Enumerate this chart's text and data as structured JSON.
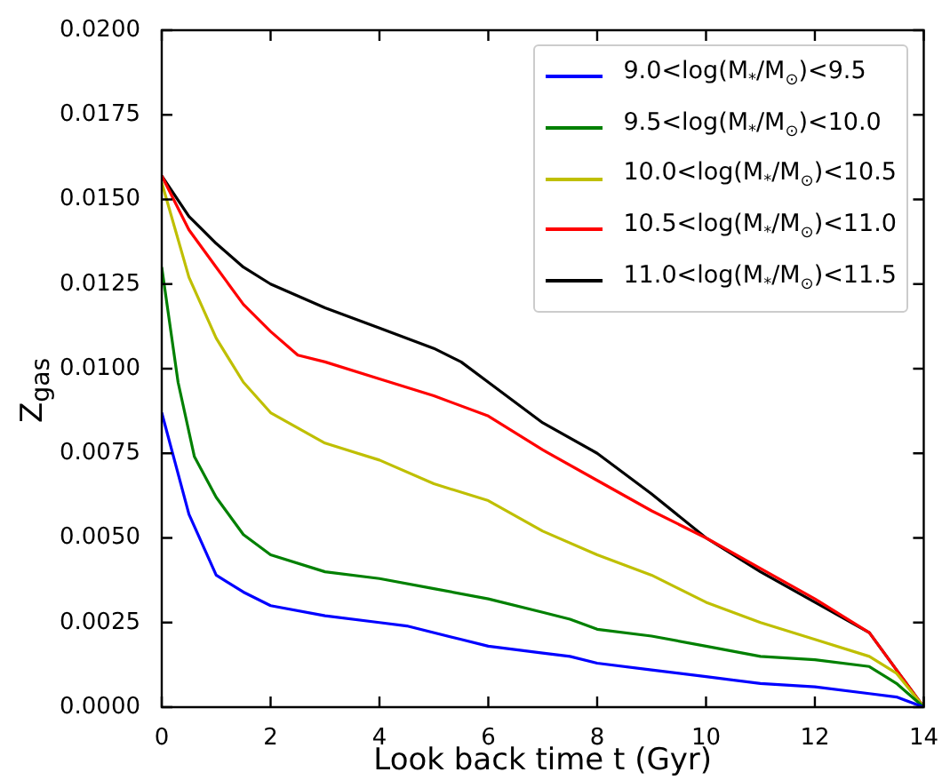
{
  "chart_data": {
    "type": "line",
    "xlabel": "Look back time t (Gyr)",
    "ylabel": "Z$_{gas}$",
    "xlim": [
      0,
      14
    ],
    "xticks": [
      0,
      2,
      4,
      6,
      8,
      10,
      12,
      14
    ],
    "ylim": [
      0,
      0.02
    ],
    "yticks": [
      {
        "value": 0,
        "label": "0.0000"
      },
      {
        "value": 0.0025,
        "label": "0.0025"
      },
      {
        "value": 0.005,
        "label": "0.0050"
      },
      {
        "value": 0.0075,
        "label": "0.0075"
      },
      {
        "value": 0.01,
        "label": "0.0100"
      },
      {
        "value": 0.0125,
        "label": "0.0125"
      },
      {
        "value": 0.015,
        "label": "0.0150"
      },
      {
        "value": 0.0175,
        "label": "0.0175"
      },
      {
        "value": 0.02,
        "label": "0.0200"
      }
    ],
    "grid": false,
    "legend": "top right",
    "marker": "none",
    "line_style": "solid",
    "series": [
      {
        "name": "9.0<log(M$_{*}$/M$_{⊙}$)<9.5",
        "color": "#0000ff",
        "x": [
          0,
          0.5,
          1,
          1.5,
          2,
          3,
          4,
          4.5,
          5.5,
          6,
          7,
          7.5,
          8,
          9,
          10,
          11,
          12,
          13,
          13.5,
          14
        ],
        "values": [
          0.0087,
          0.0057,
          0.0039,
          0.0034,
          0.003,
          0.0027,
          0.0025,
          0.0024,
          0.002,
          0.0018,
          0.0016,
          0.0015,
          0.0013,
          0.0011,
          0.0009,
          0.0007,
          0.0006,
          0.0004,
          0.0003,
          0
        ]
      },
      {
        "name": "9.5<log(M$_{*}$/M$_{⊙}$)<10.0",
        "color": "#008000",
        "x": [
          0,
          0.3,
          0.6,
          1,
          1.5,
          2,
          3,
          4,
          5,
          6,
          7,
          7.5,
          8,
          9,
          10,
          11,
          12,
          13,
          13.5,
          14
        ],
        "values": [
          0.013,
          0.0096,
          0.0074,
          0.0062,
          0.0051,
          0.0045,
          0.004,
          0.0038,
          0.0035,
          0.0032,
          0.0028,
          0.0026,
          0.0023,
          0.0021,
          0.0018,
          0.0015,
          0.0014,
          0.0012,
          0.0007,
          0
        ]
      },
      {
        "name": "10.0<log(M$_{*}$/M$_{⊙}$)<10.5",
        "color": "#bfbf00",
        "x": [
          0,
          0.5,
          1,
          1.5,
          2,
          3,
          4,
          5,
          6,
          7,
          8,
          9,
          10,
          11,
          12,
          13,
          13.5,
          14
        ],
        "values": [
          0.0155,
          0.0127,
          0.0109,
          0.0096,
          0.0087,
          0.0078,
          0.0073,
          0.0066,
          0.0061,
          0.0052,
          0.0045,
          0.0039,
          0.0031,
          0.0025,
          0.002,
          0.0015,
          0.001,
          0
        ]
      },
      {
        "name": "10.5<log(M$_{*}$/M$_{⊙}$)<11.0",
        "color": "#ff0000",
        "x": [
          0,
          0.5,
          1,
          1.5,
          2,
          2.5,
          3,
          4,
          5,
          6,
          7,
          8,
          9,
          10,
          11,
          12,
          13,
          13.5,
          14
        ],
        "values": [
          0.0157,
          0.0141,
          0.013,
          0.0119,
          0.0111,
          0.0104,
          0.0102,
          0.0097,
          0.0092,
          0.0086,
          0.0076,
          0.0067,
          0.0058,
          0.005,
          0.0041,
          0.0032,
          0.0022,
          0.0011,
          0
        ]
      },
      {
        "name": "11.0<log(M$_{*}$/M$_{⊙}$)<11.5",
        "color": "#000000",
        "x": [
          0,
          0.5,
          1,
          1.5,
          2,
          3,
          4,
          5,
          5.5,
          6,
          7,
          8,
          9,
          10,
          11,
          12,
          13,
          13.5,
          14
        ],
        "values": [
          0.0157,
          0.0145,
          0.0137,
          0.013,
          0.0125,
          0.0118,
          0.0112,
          0.0106,
          0.0102,
          0.0096,
          0.0084,
          0.0075,
          0.0063,
          0.005,
          0.004,
          0.0031,
          0.0022,
          0.0011,
          0
        ]
      }
    ]
  }
}
